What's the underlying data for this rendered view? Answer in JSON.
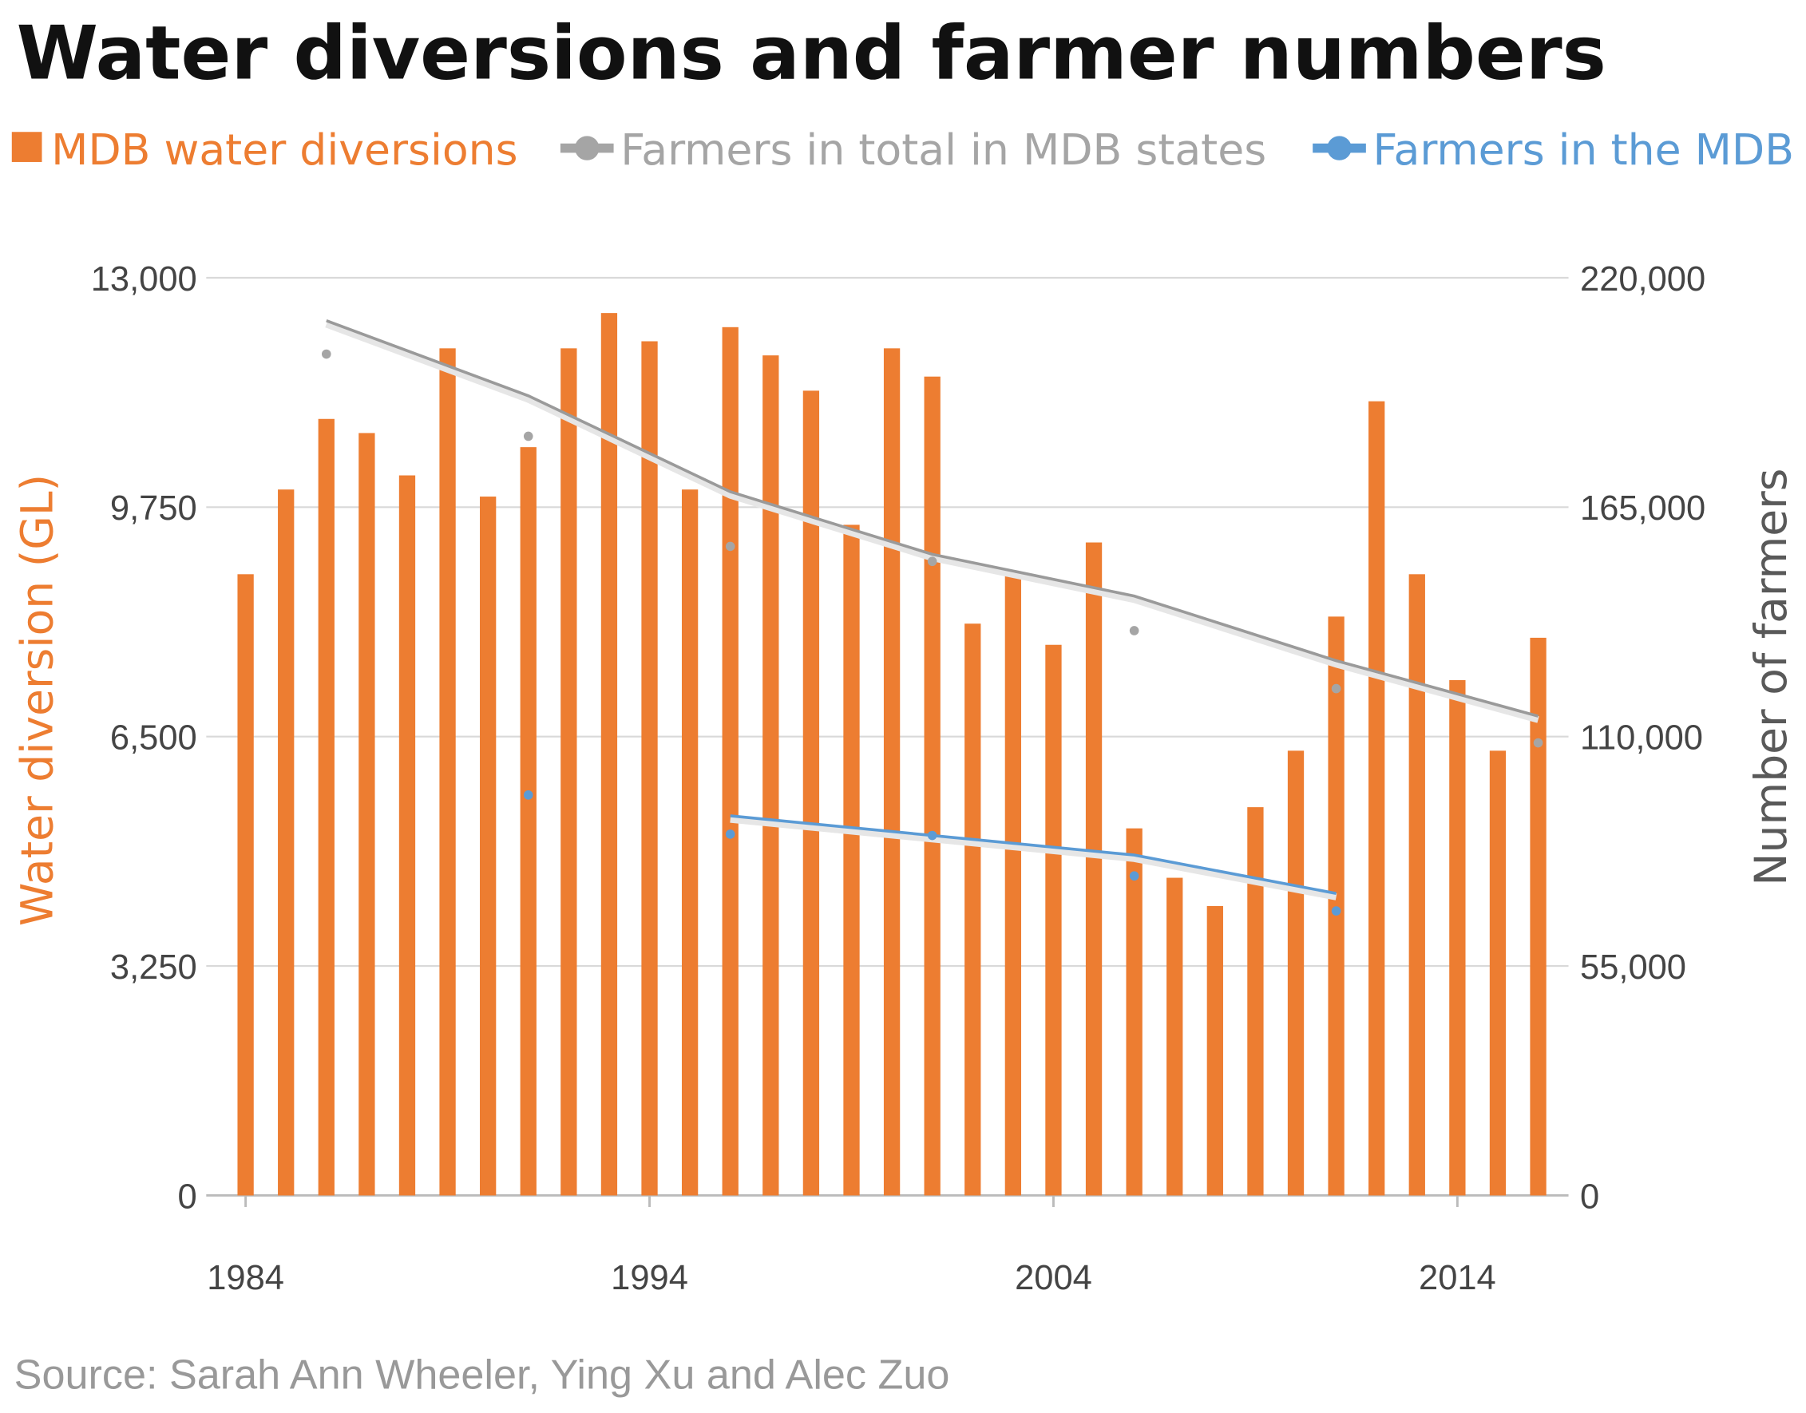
{
  "colors": {
    "diversions": "#ed7d31",
    "farmers_total": "#a5a5a5",
    "farmers_mdb": "#5b9bd5",
    "grid": "#d9d9d9"
  },
  "chart_data": {
    "type": "bar+scatter+line",
    "title": "Water diversions and farmer numbers",
    "source": "Source: Sarah Ann Wheeler, Ying Xu and Alec Zuo",
    "ylabel_left": "Water diversion (GL)",
    "ylabel_right": "Number of farmers",
    "ylim_left": [
      0,
      13000
    ],
    "ylim_right": [
      0,
      220000
    ],
    "yticks_left": [
      "0",
      "3,250",
      "6,500",
      "9,750",
      "13,000"
    ],
    "yticks_right": [
      "0",
      "55,000",
      "110,000",
      "165,000",
      "220,000"
    ],
    "xticks": [
      "1984",
      "1994",
      "2004",
      "2014"
    ],
    "grid": true,
    "legend_position": "top",
    "legend": [
      "MDB water diversions",
      "Farmers in total in MDB states",
      "Farmers in the MDB"
    ],
    "bars": {
      "name": "MDB water diversions",
      "years": [
        1984,
        1985,
        1986,
        1987,
        1988,
        1989,
        1990,
        1991,
        1992,
        1993,
        1994,
        1995,
        1996,
        1997,
        1998,
        1999,
        2000,
        2001,
        2002,
        2003,
        2004,
        2005,
        2006,
        2007,
        2008,
        2009,
        2010,
        2011,
        2012,
        2013,
        2014,
        2015,
        2016
      ],
      "values": [
        8800,
        10000,
        11000,
        10800,
        10200,
        12000,
        9900,
        10600,
        12000,
        12500,
        12100,
        10000,
        12300,
        11900,
        11400,
        9500,
        12000,
        11600,
        8100,
        8800,
        7800,
        9250,
        5200,
        4500,
        4100,
        5500,
        6300,
        8200,
        11250,
        8800,
        7300,
        6300,
        7900
      ]
    },
    "farmers_total": {
      "name": "Farmers in total in MDB states",
      "years": [
        1986,
        1991,
        1996,
        2001,
        2006,
        2011,
        2016
      ],
      "values": [
        201700,
        182000,
        155600,
        152000,
        135400,
        121500,
        108500
      ],
      "trend": [
        209700,
        191700,
        168700,
        153700,
        143700,
        128200,
        114900
      ]
    },
    "farmers_mdb": {
      "name": "Farmers in the MDB",
      "years": [
        1991,
        1996,
        2001,
        2006,
        2011
      ],
      "values": [
        96000,
        86600,
        86300,
        76600,
        68200
      ],
      "trend_years": [
        1996,
        2001,
        2006,
        2011
      ],
      "trend": [
        91000,
        86300,
        81600,
        72400
      ]
    }
  }
}
